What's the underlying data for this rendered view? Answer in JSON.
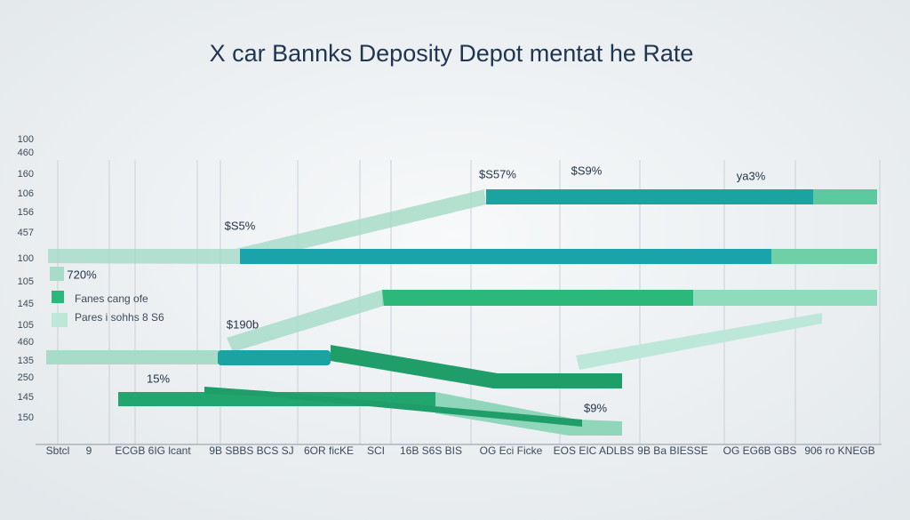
{
  "title": "X car Bannks  Deposity Depot mentat he Rate",
  "y_axis_labels": [
    "100",
    "460",
    "160",
    "106",
    "156",
    "457",
    "100",
    "105",
    "145",
    "105",
    "460",
    "135",
    "250",
    "145",
    "150"
  ],
  "x_axis_labels": [
    "Sbtcl",
    "9",
    "ECGB 6IG lcant",
    "9B SBBS BCS SJ",
    "6OR ficKE",
    "SCI",
    "16B S6S BIS",
    "OG Eci Ficke",
    "EOS EIC ADLBS",
    "9B Ba BIESSE",
    "OG EG6B GBS",
    "906 ro KNEGB"
  ],
  "annotations": [
    "$S5%",
    "$S57%",
    "$S9%",
    "ya3%",
    "720%",
    "$190b",
    "15%",
    "$9%"
  ],
  "legend": [
    "Fanes cang ofe",
    "Pares i sohhs 8 S6"
  ]
}
